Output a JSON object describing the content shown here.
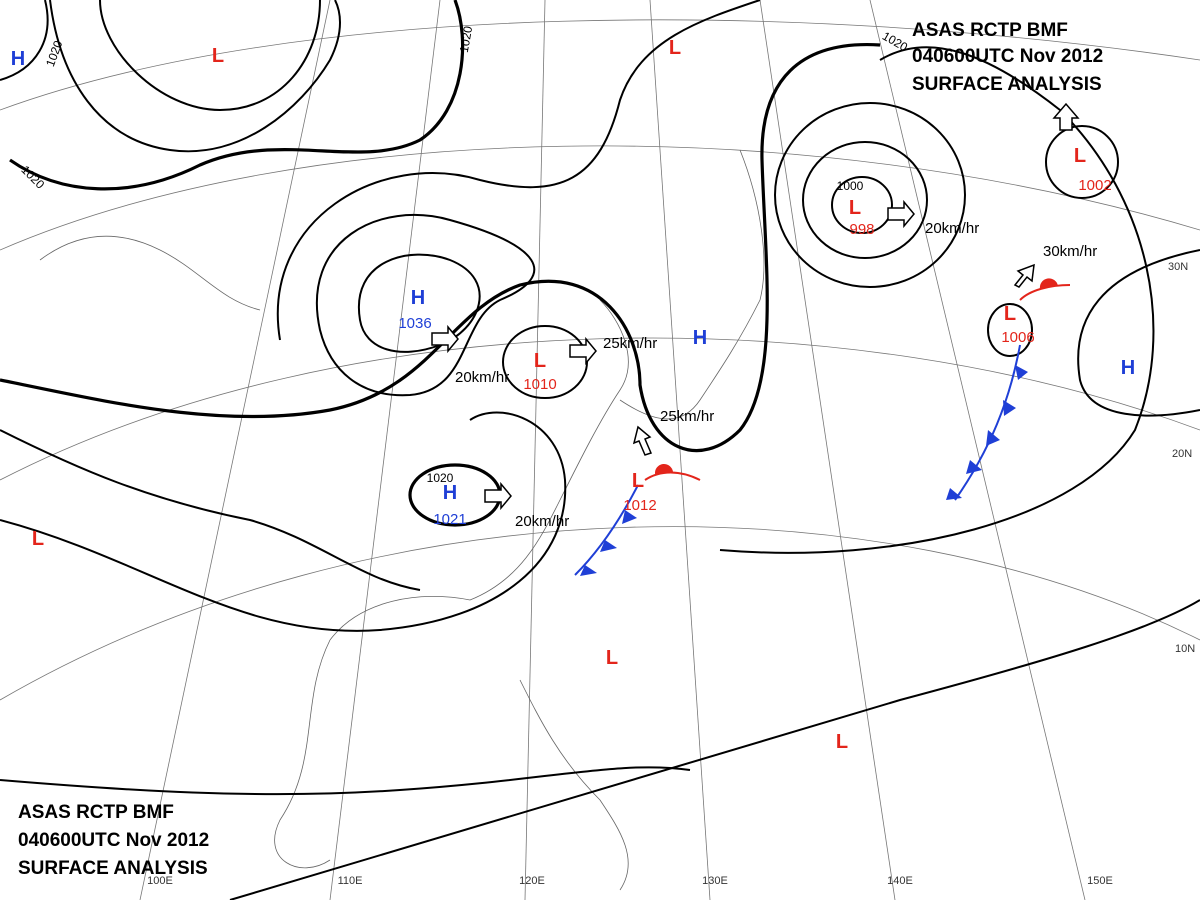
{
  "header_top": [
    "ASAS RCTP BMF",
    "040600UTC Nov 2012",
    "SURFACE ANALYSIS"
  ],
  "header_bottom": [
    "ASAS RCTP BMF",
    "040600UTC Nov 2012",
    "SURFACE ANALYSIS"
  ],
  "colors": {
    "H": "#1f3fd6",
    "L": "#e3251b"
  },
  "centers": [
    {
      "symbol": "H"
    },
    {
      "symbol": "L"
    },
    {
      "symbol": "L"
    },
    {
      "symbol": "L",
      "pressure": "998"
    },
    {
      "symbol": "L",
      "pressure": "1002"
    },
    {
      "symbol": "H",
      "pressure": "1036"
    },
    {
      "symbol": "L",
      "pressure": "1010"
    },
    {
      "symbol": "H"
    },
    {
      "symbol": "H",
      "pressure": "1021"
    },
    {
      "symbol": "L",
      "pressure": "1012"
    },
    {
      "symbol": "L",
      "pressure": "1006"
    },
    {
      "symbol": "H"
    },
    {
      "symbol": "L"
    },
    {
      "symbol": "L"
    },
    {
      "symbol": "L"
    }
  ],
  "isobar_labels": [
    "1020",
    "1020",
    "1020",
    "1020",
    "1020",
    "1000"
  ],
  "motion_labels": [
    "20km/hr",
    "25km/hr",
    "25km/hr",
    "20km/hr",
    "20km/hr",
    "30km/hr"
  ],
  "latitude_labels": [
    "30N",
    "20N",
    "10N"
  ],
  "longitude_labels": [
    "100E",
    "110E",
    "120E",
    "130E",
    "140E",
    "150E"
  ]
}
